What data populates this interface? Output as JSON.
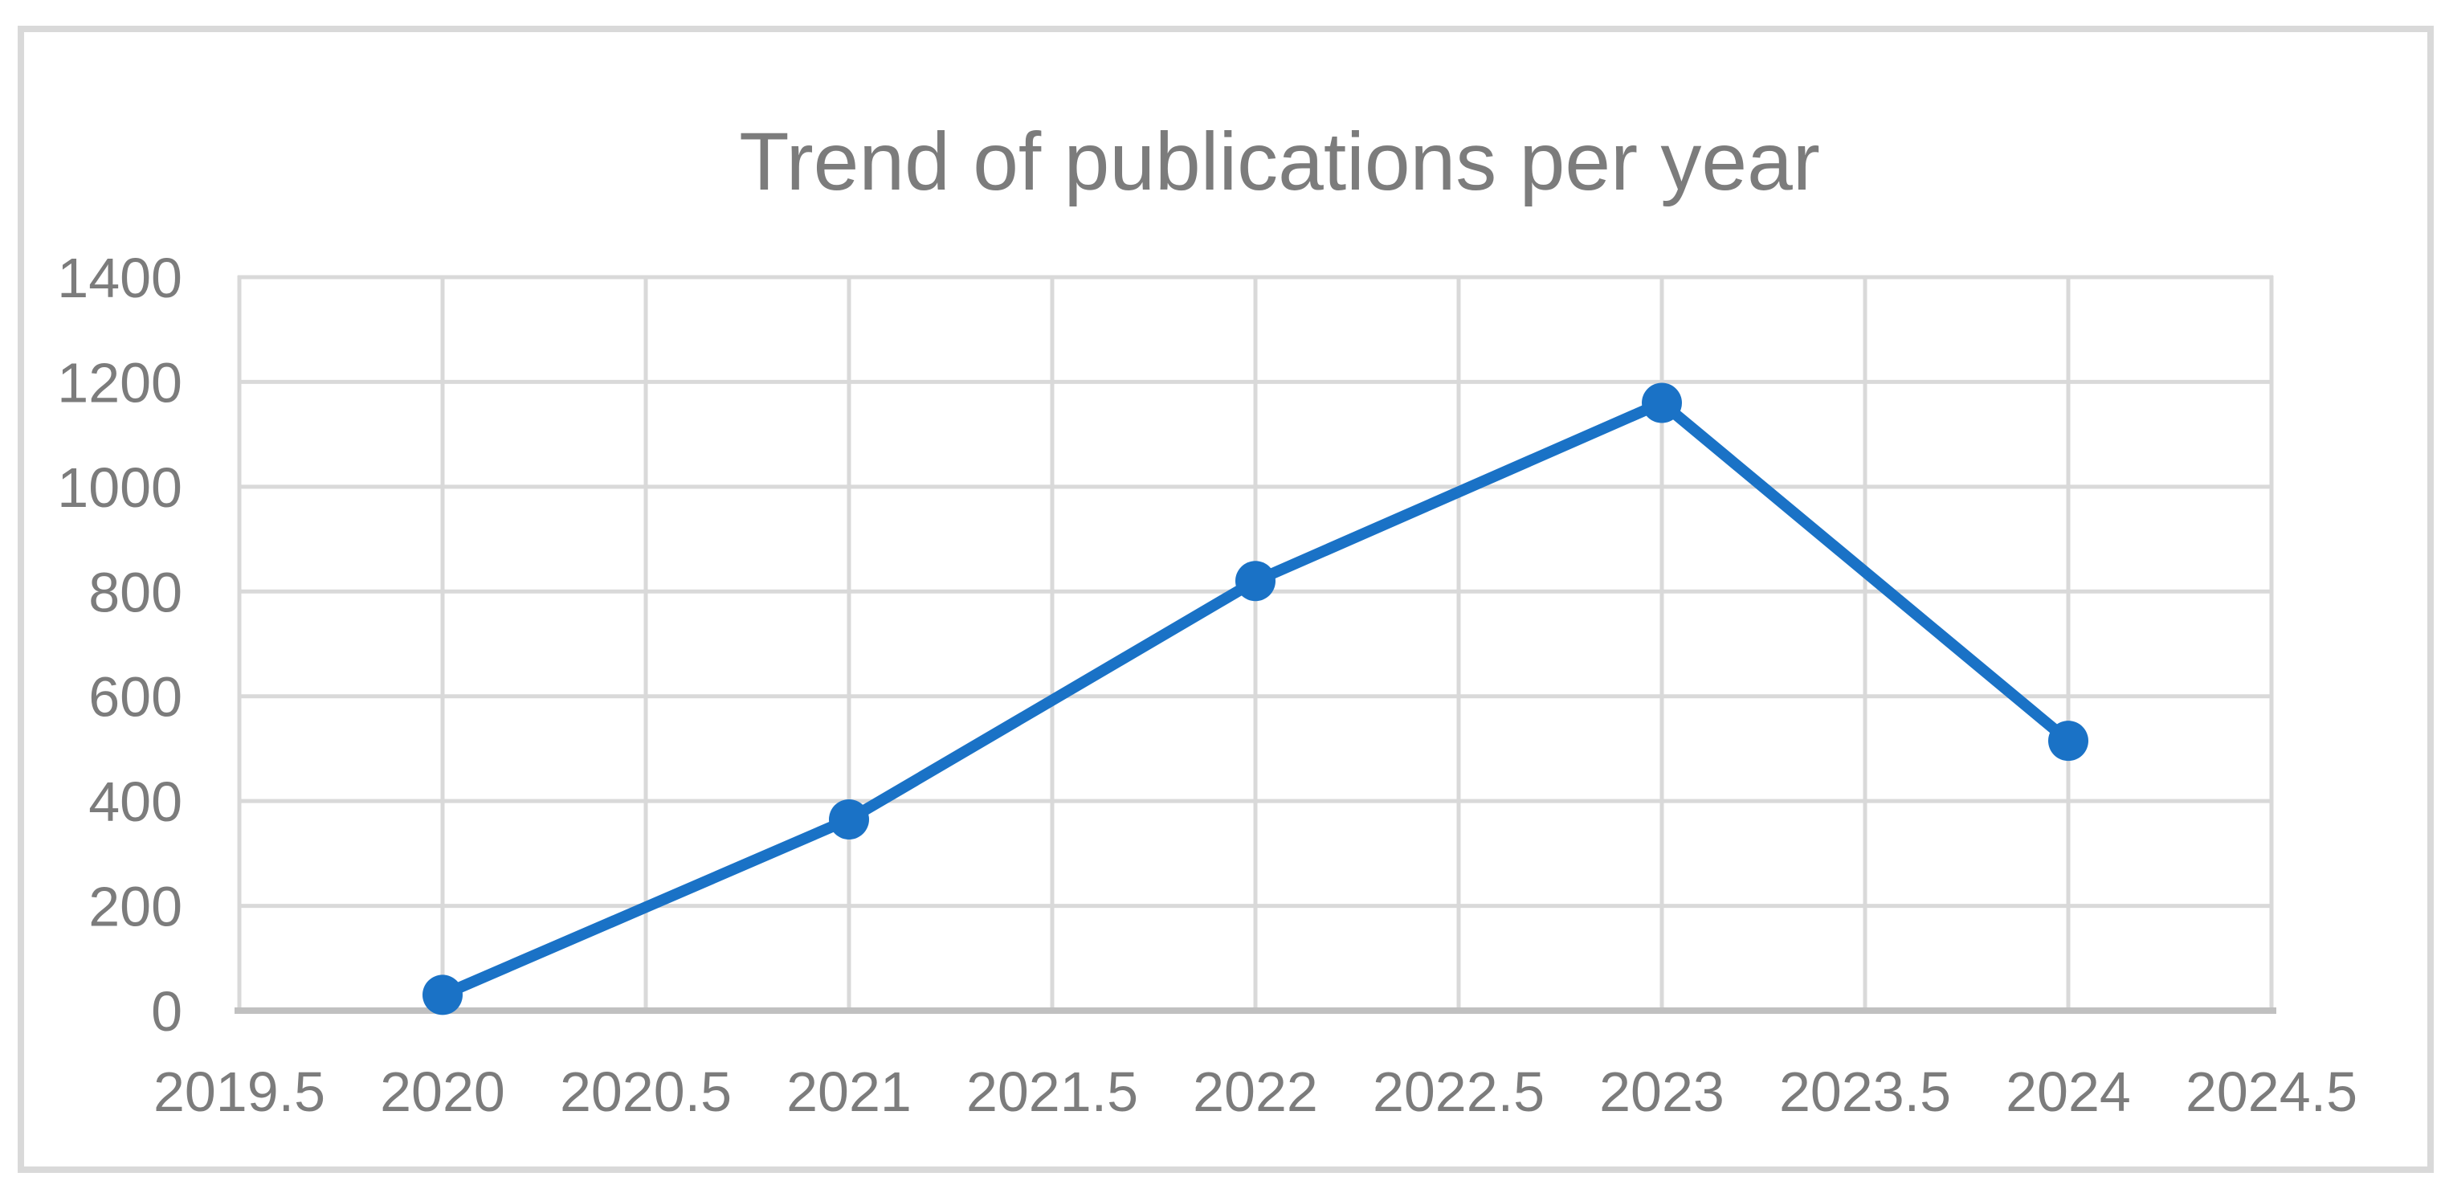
{
  "chart_data": {
    "type": "line",
    "title": "Trend of publications per year",
    "x": [
      2020,
      2021,
      2022,
      2023,
      2024
    ],
    "values": [
      30,
      365,
      820,
      1160,
      515
    ],
    "xlabel": "",
    "ylabel": "",
    "xlim": [
      2019.5,
      2024.5
    ],
    "ylim": [
      0,
      1400
    ],
    "x_tick_values": [
      2019.5,
      2020,
      2020.5,
      2021,
      2021.5,
      2022,
      2022.5,
      2023,
      2023.5,
      2024,
      2024.5
    ],
    "x_tick_labels": [
      "2019.5",
      "2020",
      "2020.5",
      "2021",
      "2021.5",
      "2022",
      "2022.5",
      "2023",
      "2023.5",
      "2024",
      "2024.5"
    ],
    "y_ticks": [
      0,
      200,
      400,
      600,
      800,
      1000,
      1200,
      1400
    ],
    "grid": true,
    "legend": "none",
    "colors": {
      "line": "#1A72C6",
      "marker": "#1A72C6",
      "gridline": "#D9D9D9",
      "axis_line": "#C0C0C0",
      "tick_label": "#7C7C7C",
      "title": "#7C7C7C",
      "frame_border": "#D9D9D9",
      "background": "#FFFFFF"
    }
  }
}
